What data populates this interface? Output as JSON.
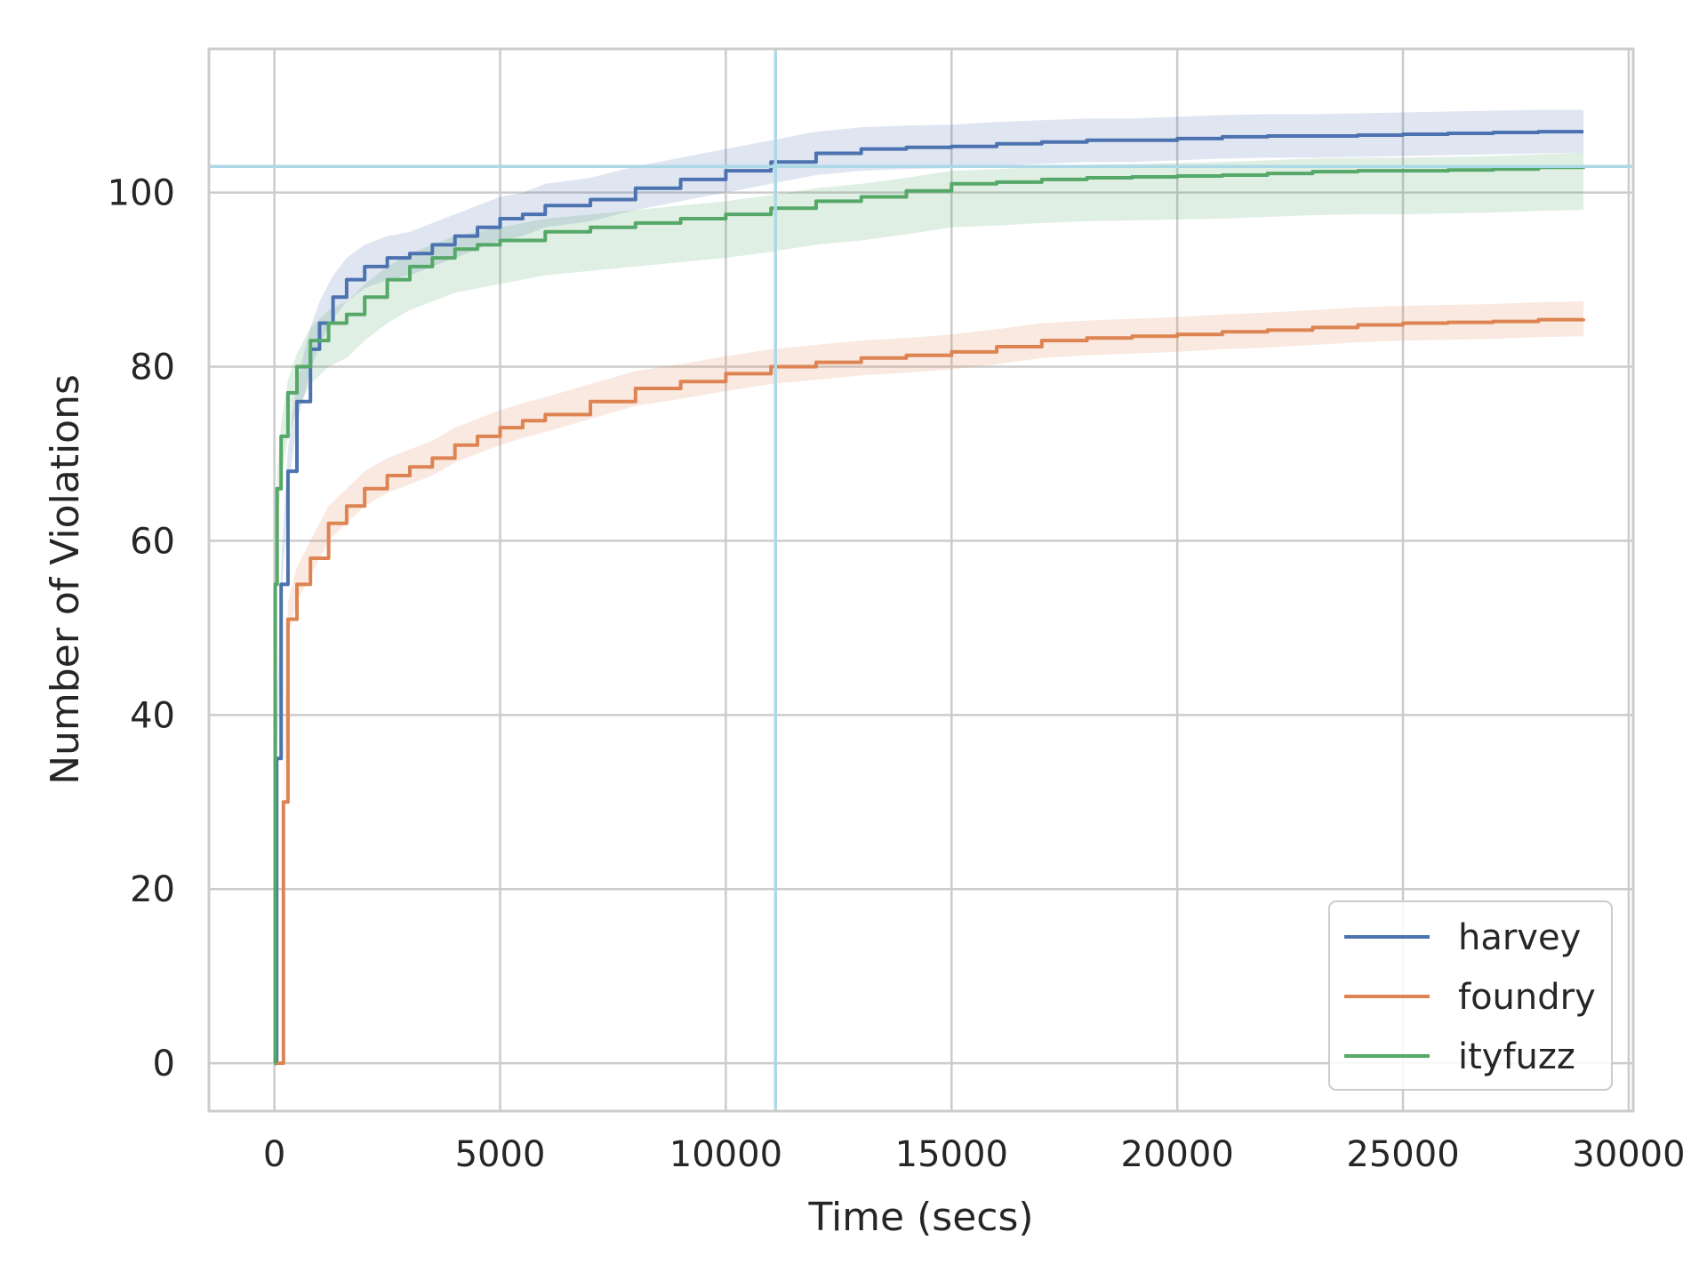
{
  "chart_data": {
    "type": "line",
    "title": "",
    "xlabel": "Time (secs)",
    "ylabel": "Number of Violations",
    "xlim": [
      -1450,
      30100
    ],
    "ylim": [
      -5.5,
      116.5
    ],
    "xticks": [
      0,
      5000,
      10000,
      15000,
      20000,
      25000,
      30000
    ],
    "xtick_labels": [
      "0",
      "5000",
      "10000",
      "15000",
      "20000",
      "25000",
      "30000"
    ],
    "yticks": [
      0,
      20,
      40,
      60,
      80,
      100
    ],
    "ytick_labels": [
      "0",
      "20",
      "40",
      "60",
      "80",
      "100"
    ],
    "grid": true,
    "legend_position": "lower-right",
    "reference_lines": {
      "vertical_x": 11100,
      "horizontal_y": 103,
      "color": "#add8e6"
    },
    "series": [
      {
        "name": "harvey",
        "color": "#4c72b0",
        "x": [
          0,
          50,
          150,
          300,
          500,
          800,
          1000,
          1300,
          1600,
          2000,
          2500,
          3000,
          3500,
          4000,
          4500,
          5000,
          5500,
          6000,
          7000,
          8000,
          9000,
          10000,
          11000,
          12000,
          13000,
          14000,
          15000,
          16000,
          17000,
          18000,
          19000,
          20000,
          21000,
          22000,
          23000,
          24000,
          25000,
          26000,
          27000,
          28000,
          29000
        ],
        "y": [
          0,
          35,
          55,
          68,
          76,
          82,
          85,
          88,
          90,
          91.5,
          92.5,
          93,
          94,
          95,
          96,
          97,
          97.5,
          98.5,
          99.2,
          100.5,
          101.5,
          102.5,
          103.5,
          104.5,
          105,
          105.2,
          105.3,
          105.6,
          105.8,
          106,
          106,
          106.2,
          106.4,
          106.5,
          106.5,
          106.6,
          106.7,
          106.8,
          106.9,
          107,
          107
        ]
      },
      {
        "name": "foundry",
        "color": "#dd8452",
        "x": [
          0,
          150,
          200,
          300,
          500,
          800,
          1200,
          1600,
          2000,
          2500,
          3000,
          3500,
          4000,
          4500,
          5000,
          5500,
          6000,
          7000,
          8000,
          9000,
          10000,
          11000,
          12000,
          13000,
          14000,
          15000,
          16000,
          17000,
          18000,
          19000,
          20000,
          21000,
          22000,
          23000,
          24000,
          25000,
          26000,
          27000,
          28000,
          29000
        ],
        "y": [
          0,
          0,
          30,
          51,
          55,
          58,
          62,
          64,
          66,
          67.5,
          68.5,
          69.5,
          71,
          72,
          73,
          73.8,
          74.5,
          76,
          77.5,
          78.3,
          79.2,
          80,
          80.5,
          81,
          81.3,
          81.7,
          82.3,
          83,
          83.3,
          83.5,
          83.7,
          84,
          84.2,
          84.5,
          84.8,
          85,
          85.1,
          85.2,
          85.4,
          85.5
        ]
      },
      {
        "name": "ityfuzz",
        "color": "#55a868",
        "x": [
          0,
          20,
          60,
          150,
          300,
          500,
          800,
          1200,
          1600,
          2000,
          2500,
          3000,
          3500,
          4000,
          4500,
          5000,
          6000,
          7000,
          8000,
          9000,
          10000,
          11000,
          12000,
          13000,
          14000,
          15000,
          16000,
          17000,
          18000,
          19000,
          20000,
          21000,
          22000,
          23000,
          24000,
          25000,
          26000,
          27000,
          28000,
          29000
        ],
        "y": [
          0,
          55,
          66,
          72,
          77,
          80,
          83,
          85,
          86,
          88,
          90,
          91.5,
          92.5,
          93.5,
          94,
          94.5,
          95.5,
          96,
          96.5,
          97,
          97.5,
          98.2,
          99,
          99.5,
          100.2,
          101,
          101.2,
          101.5,
          101.7,
          101.8,
          101.9,
          102,
          102.2,
          102.4,
          102.5,
          102.5,
          102.6,
          102.7,
          102.9,
          103
        ]
      }
    ]
  }
}
